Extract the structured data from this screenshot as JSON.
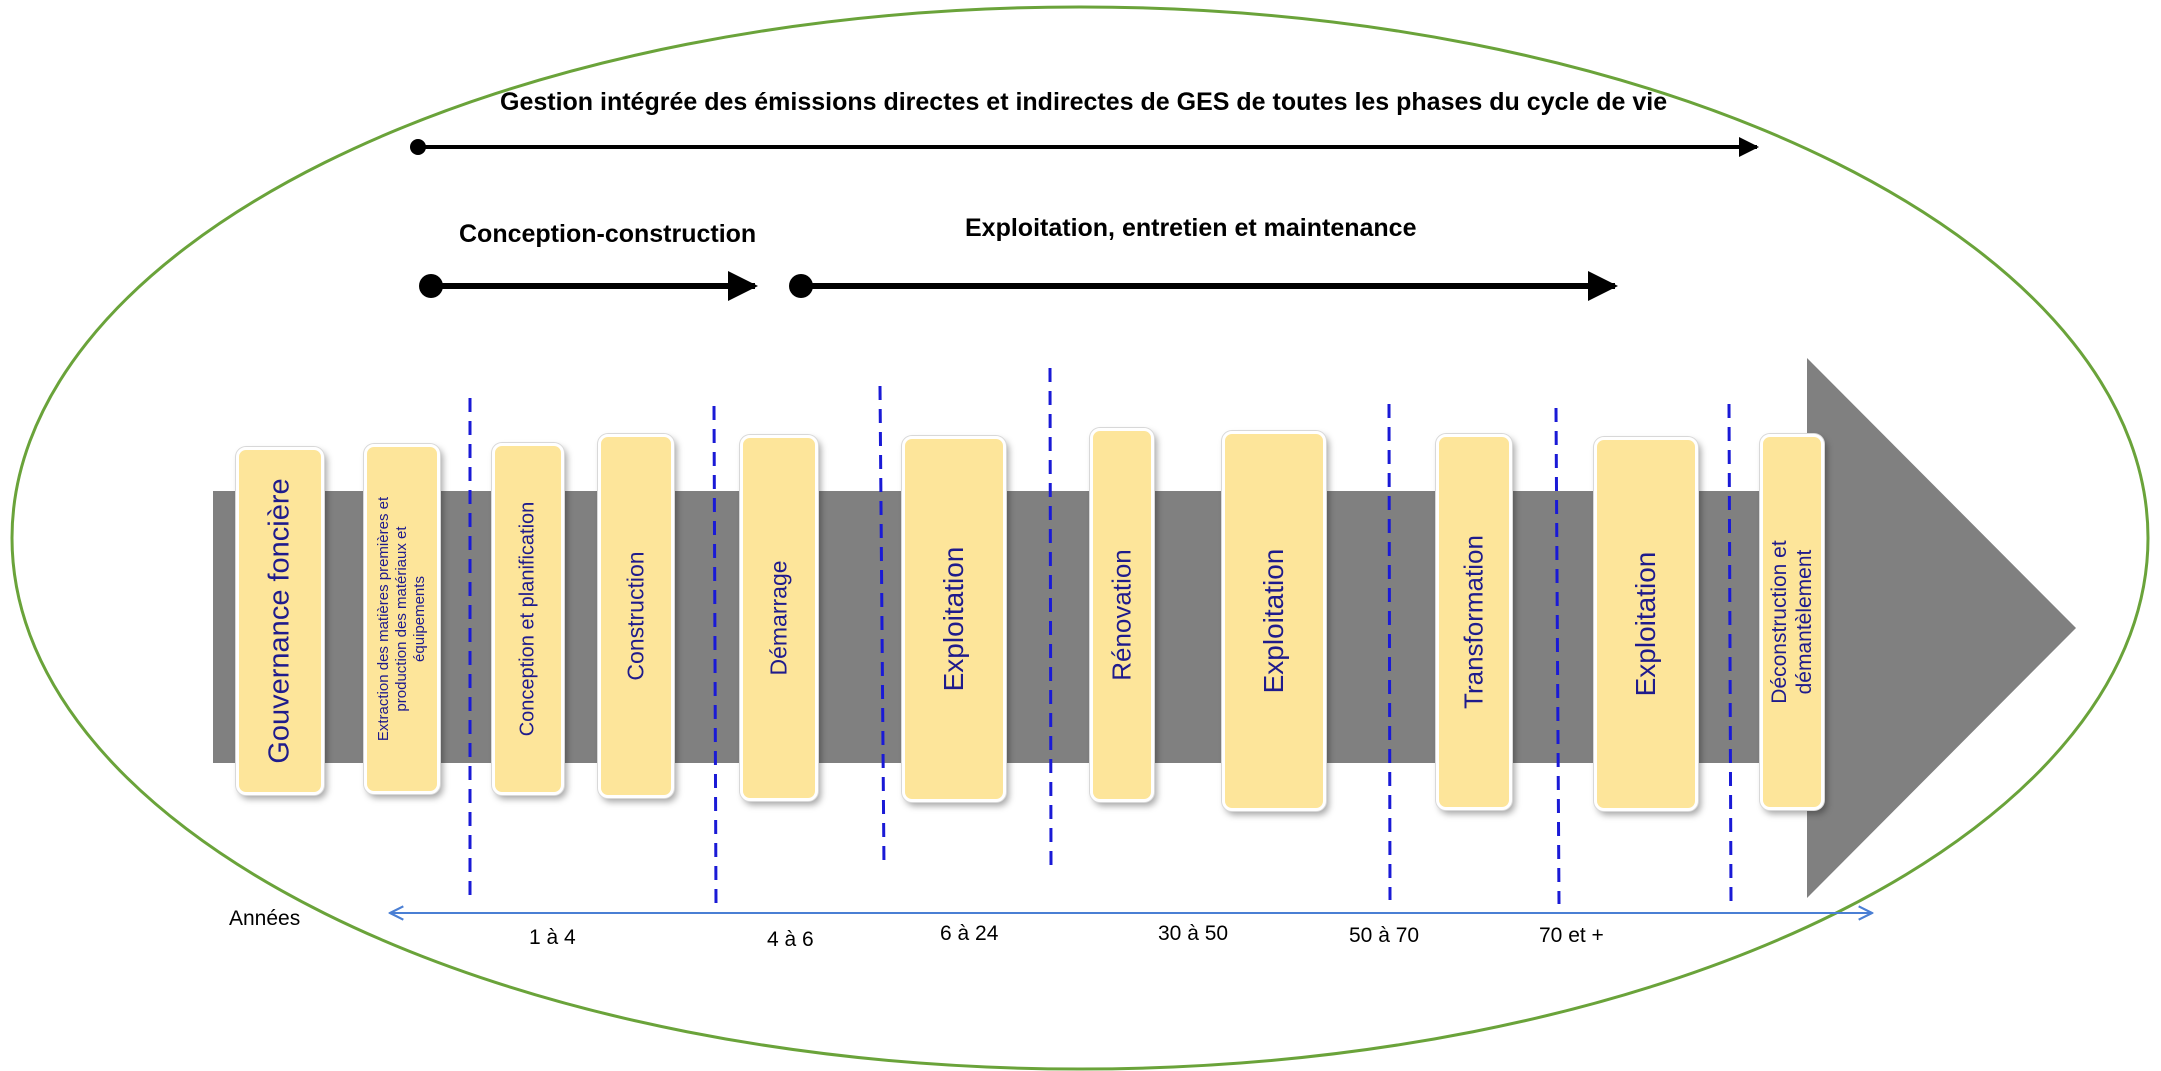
{
  "header": {
    "title": "Gestion intégrée des émissions directes et indirectes de GES de toutes les phases du cycle de vie",
    "phase_construction": "Conception-construction",
    "phase_exploitation": "Exploitation, entretien et maintenance"
  },
  "steps": [
    {
      "label": "Gouvernance foncière"
    },
    {
      "label": "Extraction  des matières  premières  et production des matériaux  et équipements"
    },
    {
      "label": "Conception et planification"
    },
    {
      "label": "Construction"
    },
    {
      "label": "Démarrage"
    },
    {
      "label": "Exploitation"
    },
    {
      "label": "Rénovation"
    },
    {
      "label": "Exploitation"
    },
    {
      "label": "Transformation"
    },
    {
      "label": "Exploitation"
    },
    {
      "label": "Déconstruction et démantèlement"
    }
  ],
  "timeline": {
    "axis_label": "Années",
    "ticks": [
      {
        "label": "1 à 4"
      },
      {
        "label": "4 à 6"
      },
      {
        "label": "6 à 24"
      },
      {
        "label": "30 à 50"
      },
      {
        "label": "50 à 70"
      },
      {
        "label": "70 et +"
      }
    ]
  },
  "colors": {
    "ellipse": "#6aa33a",
    "arrow_body": "#808080",
    "box_fill": "#fde59a",
    "box_text": "#1f1b8c",
    "divider": "#1a1ad6",
    "timeline": "#4a7fd4"
  }
}
